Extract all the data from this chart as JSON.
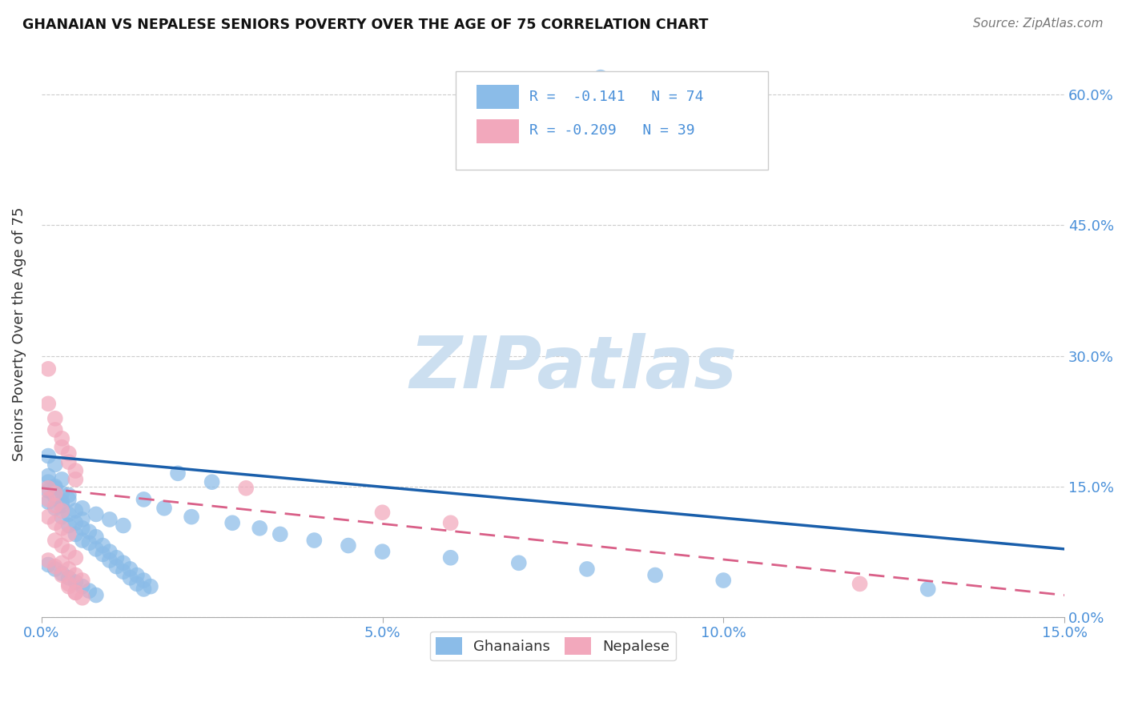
{
  "title": "GHANAIAN VS NEPALESE SENIORS POVERTY OVER THE AGE OF 75 CORRELATION CHART",
  "source": "Source: ZipAtlas.com",
  "ylabel": "Seniors Poverty Over the Age of 75",
  "xlim": [
    0.0,
    0.15
  ],
  "ylim": [
    0.0,
    0.65
  ],
  "xticks": [
    0.0,
    0.05,
    0.1,
    0.15
  ],
  "xticklabels": [
    "0.0%",
    "5.0%",
    "10.0%",
    "15.0%"
  ],
  "yticks_right": [
    0.0,
    0.15,
    0.3,
    0.45,
    0.6
  ],
  "ytick_right_labels": [
    "0.0%",
    "15.0%",
    "30.0%",
    "45.0%",
    "60.0%"
  ],
  "ghanaian_color": "#8BBCE8",
  "nepalese_color": "#F2A8BC",
  "trend_blue": "#1A5FAB",
  "trend_pink": "#D96088",
  "watermark": "ZIPatlas",
  "watermark_color": "#CCDFF0",
  "legend_R_ghana": "R =  -0.141",
  "legend_N_ghana": "N = 74",
  "legend_R_nepal": "R = -0.209",
  "legend_N_nepal": "N = 39",
  "title_color": "#111111",
  "source_color": "#777777",
  "axis_color": "#4A90D9",
  "ghana_trend_y0": 0.185,
  "ghana_trend_y1": 0.078,
  "nepal_trend_y0": 0.148,
  "nepal_trend_y1": 0.025,
  "ghana_points": [
    [
      0.001,
      0.185
    ],
    [
      0.002,
      0.175
    ],
    [
      0.001,
      0.162
    ],
    [
      0.003,
      0.158
    ],
    [
      0.002,
      0.15
    ],
    [
      0.001,
      0.145
    ],
    [
      0.003,
      0.142
    ],
    [
      0.002,
      0.138
    ],
    [
      0.004,
      0.135
    ],
    [
      0.001,
      0.132
    ],
    [
      0.003,
      0.128
    ],
    [
      0.002,
      0.125
    ],
    [
      0.005,
      0.122
    ],
    [
      0.004,
      0.118
    ],
    [
      0.003,
      0.115
    ],
    [
      0.006,
      0.112
    ],
    [
      0.005,
      0.108
    ],
    [
      0.004,
      0.105
    ],
    [
      0.006,
      0.102
    ],
    [
      0.007,
      0.098
    ],
    [
      0.005,
      0.095
    ],
    [
      0.008,
      0.092
    ],
    [
      0.006,
      0.088
    ],
    [
      0.007,
      0.085
    ],
    [
      0.009,
      0.082
    ],
    [
      0.008,
      0.078
    ],
    [
      0.01,
      0.075
    ],
    [
      0.009,
      0.072
    ],
    [
      0.011,
      0.068
    ],
    [
      0.01,
      0.065
    ],
    [
      0.012,
      0.062
    ],
    [
      0.011,
      0.058
    ],
    [
      0.013,
      0.055
    ],
    [
      0.012,
      0.052
    ],
    [
      0.014,
      0.048
    ],
    [
      0.013,
      0.045
    ],
    [
      0.015,
      0.042
    ],
    [
      0.014,
      0.038
    ],
    [
      0.016,
      0.035
    ],
    [
      0.015,
      0.032
    ],
    [
      0.001,
      0.155
    ],
    [
      0.002,
      0.148
    ],
    [
      0.004,
      0.14
    ],
    [
      0.003,
      0.132
    ],
    [
      0.006,
      0.125
    ],
    [
      0.008,
      0.118
    ],
    [
      0.01,
      0.112
    ],
    [
      0.012,
      0.105
    ],
    [
      0.001,
      0.06
    ],
    [
      0.002,
      0.055
    ],
    [
      0.003,
      0.05
    ],
    [
      0.004,
      0.045
    ],
    [
      0.005,
      0.04
    ],
    [
      0.006,
      0.035
    ],
    [
      0.007,
      0.03
    ],
    [
      0.008,
      0.025
    ],
    [
      0.02,
      0.165
    ],
    [
      0.025,
      0.155
    ],
    [
      0.015,
      0.135
    ],
    [
      0.018,
      0.125
    ],
    [
      0.022,
      0.115
    ],
    [
      0.028,
      0.108
    ],
    [
      0.032,
      0.102
    ],
    [
      0.035,
      0.095
    ],
    [
      0.04,
      0.088
    ],
    [
      0.045,
      0.082
    ],
    [
      0.05,
      0.075
    ],
    [
      0.06,
      0.068
    ],
    [
      0.07,
      0.062
    ],
    [
      0.08,
      0.055
    ],
    [
      0.09,
      0.048
    ],
    [
      0.1,
      0.042
    ],
    [
      0.13,
      0.032
    ],
    [
      0.082,
      0.62
    ]
  ],
  "nepal_points": [
    [
      0.001,
      0.148
    ],
    [
      0.002,
      0.142
    ],
    [
      0.001,
      0.135
    ],
    [
      0.002,
      0.128
    ],
    [
      0.003,
      0.122
    ],
    [
      0.001,
      0.115
    ],
    [
      0.002,
      0.108
    ],
    [
      0.003,
      0.102
    ],
    [
      0.004,
      0.095
    ],
    [
      0.002,
      0.088
    ],
    [
      0.003,
      0.082
    ],
    [
      0.004,
      0.075
    ],
    [
      0.005,
      0.068
    ],
    [
      0.003,
      0.062
    ],
    [
      0.004,
      0.055
    ],
    [
      0.005,
      0.048
    ],
    [
      0.006,
      0.042
    ],
    [
      0.004,
      0.035
    ],
    [
      0.005,
      0.028
    ],
    [
      0.006,
      0.022
    ],
    [
      0.001,
      0.285
    ],
    [
      0.001,
      0.245
    ],
    [
      0.002,
      0.228
    ],
    [
      0.002,
      0.215
    ],
    [
      0.003,
      0.205
    ],
    [
      0.003,
      0.195
    ],
    [
      0.004,
      0.188
    ],
    [
      0.004,
      0.178
    ],
    [
      0.005,
      0.168
    ],
    [
      0.005,
      0.158
    ],
    [
      0.001,
      0.065
    ],
    [
      0.002,
      0.058
    ],
    [
      0.003,
      0.048
    ],
    [
      0.004,
      0.038
    ],
    [
      0.005,
      0.028
    ],
    [
      0.03,
      0.148
    ],
    [
      0.05,
      0.12
    ],
    [
      0.06,
      0.108
    ],
    [
      0.12,
      0.038
    ]
  ]
}
